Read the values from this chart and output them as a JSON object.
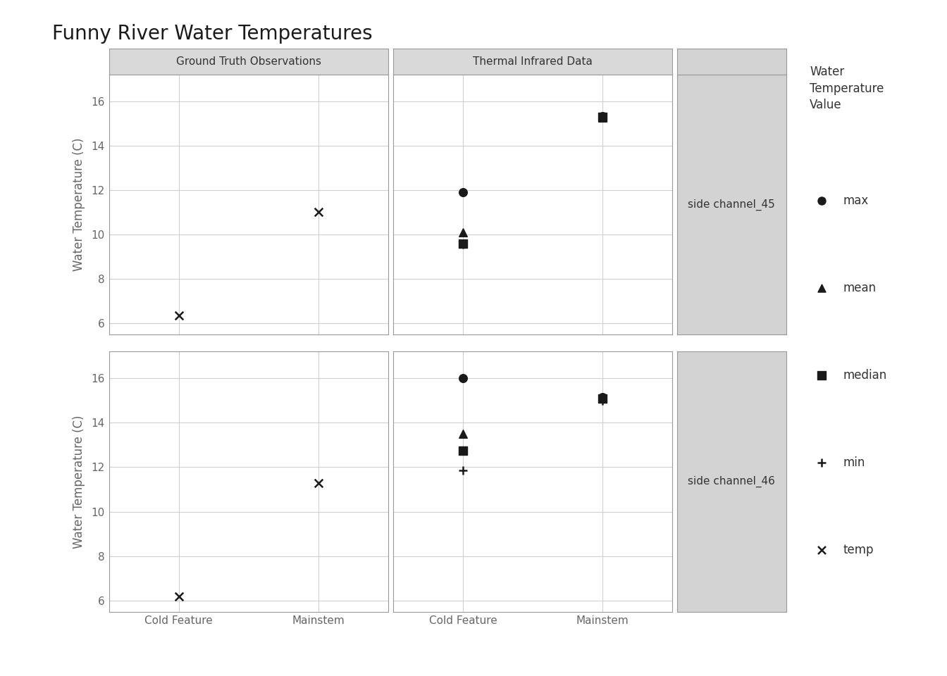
{
  "title": "Funny River Water Temperatures",
  "ylabel": "Water Temperature (C)",
  "col_labels": [
    "Ground Truth Observations",
    "Thermal Infrared Data"
  ],
  "row_labels": [
    "side channel_45",
    "side channel_46"
  ],
  "x_categories": [
    "Cold Feature",
    "Mainstem"
  ],
  "ylim": [
    5.5,
    17.2
  ],
  "yticks": [
    6,
    8,
    10,
    12,
    14,
    16
  ],
  "background_color": "#ffffff",
  "panel_bg": "#ffffff",
  "strip_bg": "#d9d9d9",
  "gray_panel_bg": "#d3d3d3",
  "data": {
    "row0_col0": {
      "Cold Feature": {
        "temp": 6.35
      },
      "Mainstem": {
        "temp": 11.0
      }
    },
    "row0_col1": {
      "Cold Feature": {
        "max": 11.9,
        "mean": 10.1,
        "median": 9.6,
        "min": 9.55
      },
      "Mainstem": {
        "max": 15.32,
        "mean": 15.27,
        "median": 15.3,
        "min": 15.3
      }
    },
    "row1_col0": {
      "Cold Feature": {
        "temp": 6.2
      },
      "Mainstem": {
        "temp": 11.3
      }
    },
    "row1_col1": {
      "Cold Feature": {
        "max": 16.0,
        "mean": 13.5,
        "median": 12.75,
        "min": 11.85
      },
      "Mainstem": {
        "max": 15.15,
        "mean": 15.1,
        "median": 15.1,
        "min": 15.0
      }
    }
  },
  "legend_title": "Water\nTemperature\nValue",
  "legend_items": [
    "max",
    "mean",
    "median",
    "min",
    "temp"
  ],
  "markers": {
    "max": "o",
    "mean": "^",
    "median": "s",
    "min": "+",
    "temp": "x"
  },
  "marker_size": 70,
  "marker_color": "#1a1a1a",
  "grid_color": "#d0d0d0",
  "spine_color": "#999999",
  "tick_label_color": "#666666",
  "title_fontsize": 20,
  "label_fontsize": 12,
  "tick_fontsize": 11,
  "strip_fontsize": 11
}
